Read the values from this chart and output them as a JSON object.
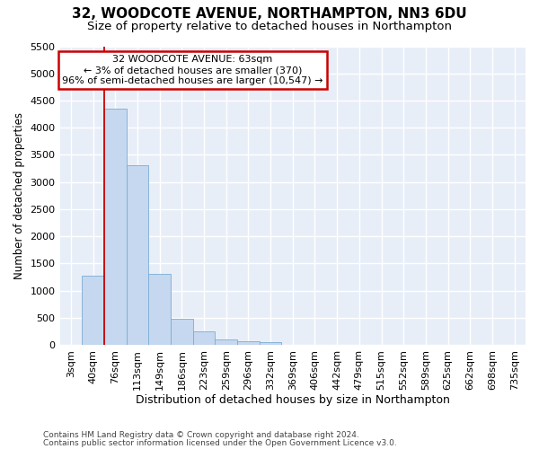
{
  "title_line1": "32, WOODCOTE AVENUE, NORTHAMPTON, NN3 6DU",
  "title_line2": "Size of property relative to detached houses in Northampton",
  "xlabel": "Distribution of detached houses by size in Northampton",
  "ylabel": "Number of detached properties",
  "footnote1": "Contains HM Land Registry data © Crown copyright and database right 2024.",
  "footnote2": "Contains public sector information licensed under the Open Government Licence v3.0.",
  "categories": [
    "3sqm",
    "40sqm",
    "76sqm",
    "113sqm",
    "149sqm",
    "186sqm",
    "223sqm",
    "259sqm",
    "296sqm",
    "332sqm",
    "369sqm",
    "406sqm",
    "442sqm",
    "479sqm",
    "515sqm",
    "552sqm",
    "589sqm",
    "625sqm",
    "662sqm",
    "698sqm",
    "735sqm"
  ],
  "values": [
    0,
    1280,
    4350,
    3300,
    1300,
    480,
    240,
    95,
    65,
    50,
    0,
    0,
    0,
    0,
    0,
    0,
    0,
    0,
    0,
    0,
    0
  ],
  "bar_color": "#c5d8ef",
  "bar_edge_color": "#7aadd4",
  "annotation_text": "32 WOODCOTE AVENUE: 63sqm\n← 3% of detached houses are smaller (370)\n96% of semi-detached houses are larger (10,547) →",
  "annotation_box_color": "#ffffff",
  "annotation_box_edge": "#cc0000",
  "vline_x": 2,
  "vline_color": "#cc0000",
  "ylim_max": 5500,
  "yticks": [
    0,
    500,
    1000,
    1500,
    2000,
    2500,
    3000,
    3500,
    4000,
    4500,
    5000,
    5500
  ],
  "plot_bg_color": "#e8eef8",
  "grid_color": "#ffffff",
  "fig_bg_color": "#ffffff",
  "title_fontsize": 11,
  "subtitle_fontsize": 9.5,
  "axis_label_fontsize": 9,
  "ylabel_fontsize": 8.5,
  "tick_fontsize": 8,
  "footnote_fontsize": 6.5,
  "annot_fontsize": 8
}
